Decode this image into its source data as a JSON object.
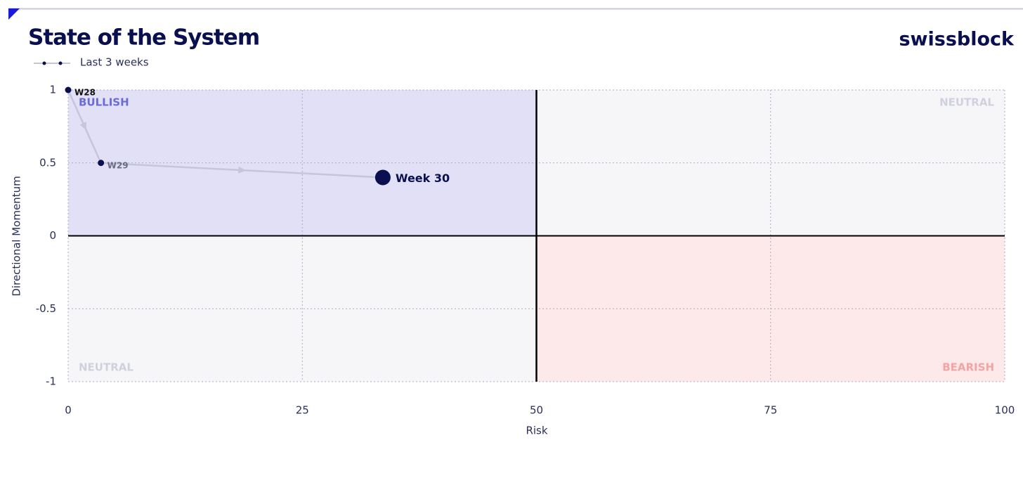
{
  "chart_data": {
    "type": "line",
    "title": "State of the System",
    "brand": "swissblock",
    "x_label": "Risk",
    "y_label": "Directional Momentum",
    "xlim": [
      0,
      100
    ],
    "xticks": [
      0,
      25,
      50,
      75,
      100
    ],
    "ylim": [
      -1,
      1
    ],
    "yticks": [
      1,
      0.5,
      0,
      -0.5,
      -1
    ],
    "grid": true,
    "dividers": {
      "x": 50,
      "y": 0
    },
    "quadrants": [
      {
        "label": "BULLISH",
        "color": "#e1e0f7",
        "label_color": "#6b6bd6",
        "corner": "top-left",
        "xlim": [
          0,
          50
        ],
        "ylim": [
          0,
          1
        ]
      },
      {
        "label": "NEUTRAL",
        "color": "#f6f6f8",
        "label_color": "#d0d1de",
        "corner": "top-right",
        "xlim": [
          50,
          100
        ],
        "ylim": [
          0,
          1
        ]
      },
      {
        "label": "NEUTRAL",
        "color": "#f6f6f8",
        "label_color": "#d0d1de",
        "corner": "bottom-left",
        "xlim": [
          0,
          50
        ],
        "ylim": [
          -1,
          0
        ]
      },
      {
        "label": "BEARISH",
        "color": "#fde9e9",
        "label_color": "#f4a3a3",
        "corner": "bottom-right",
        "xlim": [
          50,
          100
        ],
        "ylim": [
          -1,
          0
        ]
      }
    ],
    "series": [
      {
        "name": "Last 3 weeks",
        "color": "#c5c6d9",
        "marker_color": "#0a0f4f",
        "x": [
          0,
          3.5,
          33.6
        ],
        "values": [
          1,
          0.5,
          0.4
        ],
        "point_labels": [
          "W28",
          "W29",
          "Week 30"
        ]
      }
    ]
  }
}
